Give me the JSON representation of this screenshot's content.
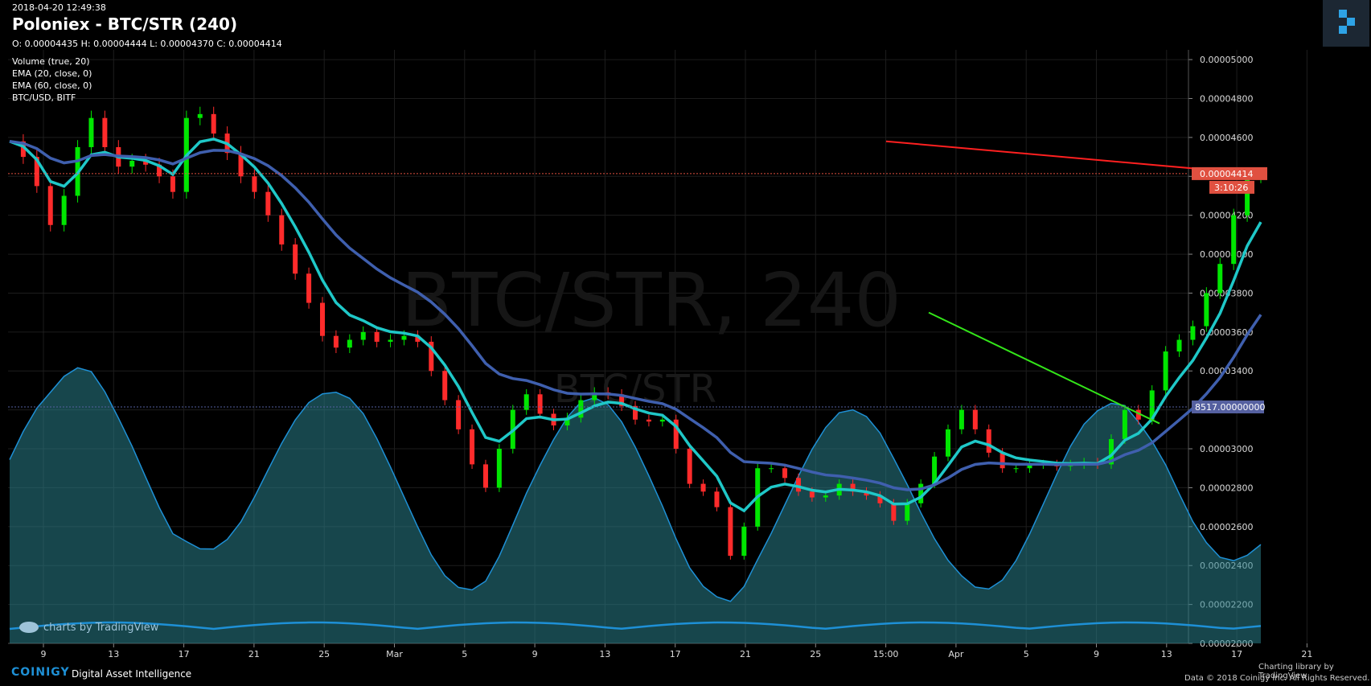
{
  "header": {
    "timestamp": "2018-04-20 12:49:38",
    "title": "Poloniex - BTC/STR (240)",
    "ohlc": "O: 0.00004435 H: 0.00004444 L: 0.00004370 C: 0.00004414"
  },
  "legend": [
    "Volume (true, 20)",
    "EMA (20, close, 0)",
    "EMA (60, close, 0)",
    "BTC/USD, BITF"
  ],
  "watermark": {
    "main": "BTC/STR, 240",
    "sub": "BTC/STR"
  },
  "price_labels": {
    "last": "0.00004414",
    "countdown": "3:10:26",
    "btcusd": "8517.00000000"
  },
  "footer": {
    "coinigy": "COINIGY",
    "tagline": "Digital Asset Intelligence",
    "tv_watermark": "charts by TradingView",
    "charting_lib": "Charting library by",
    "charting_brand": "TradingView",
    "copyright": "Data © 2018",
    "copyright2": "Coinigy Inc. All Rights Reserved."
  },
  "colors": {
    "up": "#00e600",
    "down": "#ff2b2b",
    "ema20": "#1fc8c8",
    "ema60": "#3f5fae",
    "volume_fill": "#2a7f8a",
    "btcusd": "#1e90d6",
    "resistance": "#ff2020",
    "support": "#33e619",
    "last_price": "#e05040",
    "btcusd_label": "#5560a0"
  },
  "chart_data": {
    "type": "candlestick",
    "title": "Poloniex - BTC/STR (240)",
    "ylim": [
      2e-05,
      5.05e-05
    ],
    "y_ticks": [
      "0.00005000",
      "0.00004800",
      "0.00004600",
      "0.00004400",
      "0.00004200",
      "0.00004000",
      "0.00003800",
      "0.00003600",
      "0.00003400",
      "0.00003200",
      "0.00003000",
      "0.00002800",
      "0.00002600",
      "0.00002400",
      "0.00002200",
      "0.00002000"
    ],
    "x_ticks": [
      "9",
      "13",
      "17",
      "21",
      "25",
      "Mar",
      "5",
      "9",
      "13",
      "17",
      "21",
      "25",
      "15:00",
      "Apr",
      "5",
      "9",
      "13",
      "17",
      "21"
    ],
    "close_series": [
      4.58e-05,
      4.5e-05,
      4.35e-05,
      4.15e-05,
      4.3e-05,
      4.55e-05,
      4.7e-05,
      4.55e-05,
      4.45e-05,
      4.48e-05,
      4.46e-05,
      4.4e-05,
      4.32e-05,
      4.7e-05,
      4.72e-05,
      4.62e-05,
      4.52e-05,
      4.4e-05,
      4.32e-05,
      4.2e-05,
      4.05e-05,
      3.9e-05,
      3.75e-05,
      3.58e-05,
      3.52e-05,
      3.56e-05,
      3.6e-05,
      3.55e-05,
      3.56e-05,
      3.58e-05,
      3.55e-05,
      3.4e-05,
      3.25e-05,
      3.1e-05,
      2.92e-05,
      2.8e-05,
      3e-05,
      3.2e-05,
      3.28e-05,
      3.18e-05,
      3.12e-05,
      3.16e-05,
      3.25e-05,
      3.29e-05,
      3.28e-05,
      3.22e-05,
      3.15e-05,
      3.14e-05,
      3.15e-05,
      3e-05,
      2.82e-05,
      2.78e-05,
      2.7e-05,
      2.45e-05,
      2.6e-05,
      2.9e-05,
      2.9e-05,
      2.85e-05,
      2.78e-05,
      2.75e-05,
      2.76e-05,
      2.82e-05,
      2.78e-05,
      2.76e-05,
      2.72e-05,
      2.63e-05,
      2.72e-05,
      2.82e-05,
      2.96e-05,
      3.1e-05,
      3.2e-05,
      3.1e-05,
      2.98e-05,
      2.9e-05,
      2.9e-05,
      2.92e-05,
      2.92e-05,
      2.91e-05,
      2.92e-05,
      2.93e-05,
      2.92e-05,
      3.05e-05,
      3.2e-05,
      3.15e-05,
      3.3e-05,
      3.5e-05,
      3.56e-05,
      3.63e-05,
      3.8e-05,
      3.95e-05,
      4.2e-05,
      4.4e-05,
      4.41e-05
    ],
    "resistance_line": {
      "from_price": 4.58e-05,
      "to_price": 4.41e-05
    },
    "support_line": {
      "from_price": 3.7e-05,
      "to_price": 3.13e-05
    },
    "last_price": 4.414e-05,
    "grid": true
  }
}
